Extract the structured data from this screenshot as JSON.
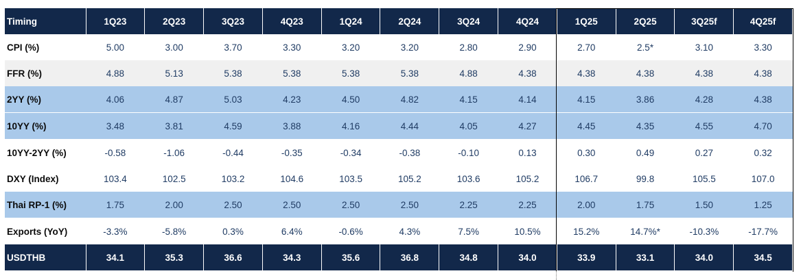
{
  "table": {
    "header": [
      "Timing",
      "1Q23",
      "2Q23",
      "3Q23",
      "4Q23",
      "1Q24",
      "2Q24",
      "3Q24",
      "4Q24",
      "1Q25",
      "2Q25",
      "3Q25f",
      "4Q25f"
    ],
    "rows": [
      {
        "style": "white",
        "cells": [
          "CPI (%)",
          "5.00",
          "3.00",
          "3.70",
          "3.30",
          "3.20",
          "3.20",
          "2.80",
          "2.90",
          "2.70",
          "2.5*",
          "3.10",
          "3.30"
        ]
      },
      {
        "style": "grey",
        "cells": [
          "FFR (%)",
          "4.88",
          "5.13",
          "5.38",
          "5.38",
          "5.38",
          "5.38",
          "4.88",
          "4.38",
          "4.38",
          "4.38",
          "4.38",
          "4.38"
        ]
      },
      {
        "style": "blue",
        "cells": [
          "2YY (%)",
          "4.06",
          "4.87",
          "5.03",
          "4.23",
          "4.50",
          "4.82",
          "4.15",
          "4.14",
          "4.15",
          "3.86",
          "4.28",
          "4.38"
        ]
      },
      {
        "style": "blue",
        "cells": [
          "10YY (%)",
          "3.48",
          "3.81",
          "4.59",
          "3.88",
          "4.16",
          "4.44",
          "4.05",
          "4.27",
          "4.45",
          "4.35",
          "4.55",
          "4.70"
        ]
      },
      {
        "style": "white",
        "cells": [
          "10YY-2YY (%)",
          "-0.58",
          "-1.06",
          "-0.44",
          "-0.35",
          "-0.34",
          "-0.38",
          "-0.10",
          "0.13",
          "0.30",
          "0.49",
          "0.27",
          "0.32"
        ]
      },
      {
        "style": "white",
        "cells": [
          "DXY (Index)",
          "103.4",
          "102.5",
          "103.2",
          "104.6",
          "103.5",
          "105.2",
          "103.6",
          "105.2",
          "106.7",
          "99.8",
          "105.5",
          "107.0"
        ]
      },
      {
        "style": "blue",
        "cells": [
          "Thai RP-1 (%)",
          "1.75",
          "2.00",
          "2.50",
          "2.50",
          "2.50",
          "2.50",
          "2.25",
          "2.25",
          "2.00",
          "1.75",
          "1.50",
          "1.25"
        ]
      },
      {
        "style": "white",
        "cells": [
          "Exports (YoY)",
          "-3.3%",
          "-5.8%",
          "0.3%",
          "6.4%",
          "-0.6%",
          "4.3%",
          "7.5%",
          "10.5%",
          "15.2%",
          "14.7%*",
          "-10.3%",
          "-17.7%"
        ]
      },
      {
        "style": "foot",
        "cells": [
          "USDTHB",
          "34.1",
          "35.3",
          "36.6",
          "34.3",
          "35.6",
          "36.8",
          "34.8",
          "34.0",
          "33.9",
          "33.1",
          "34.0",
          "34.5"
        ]
      }
    ]
  }
}
